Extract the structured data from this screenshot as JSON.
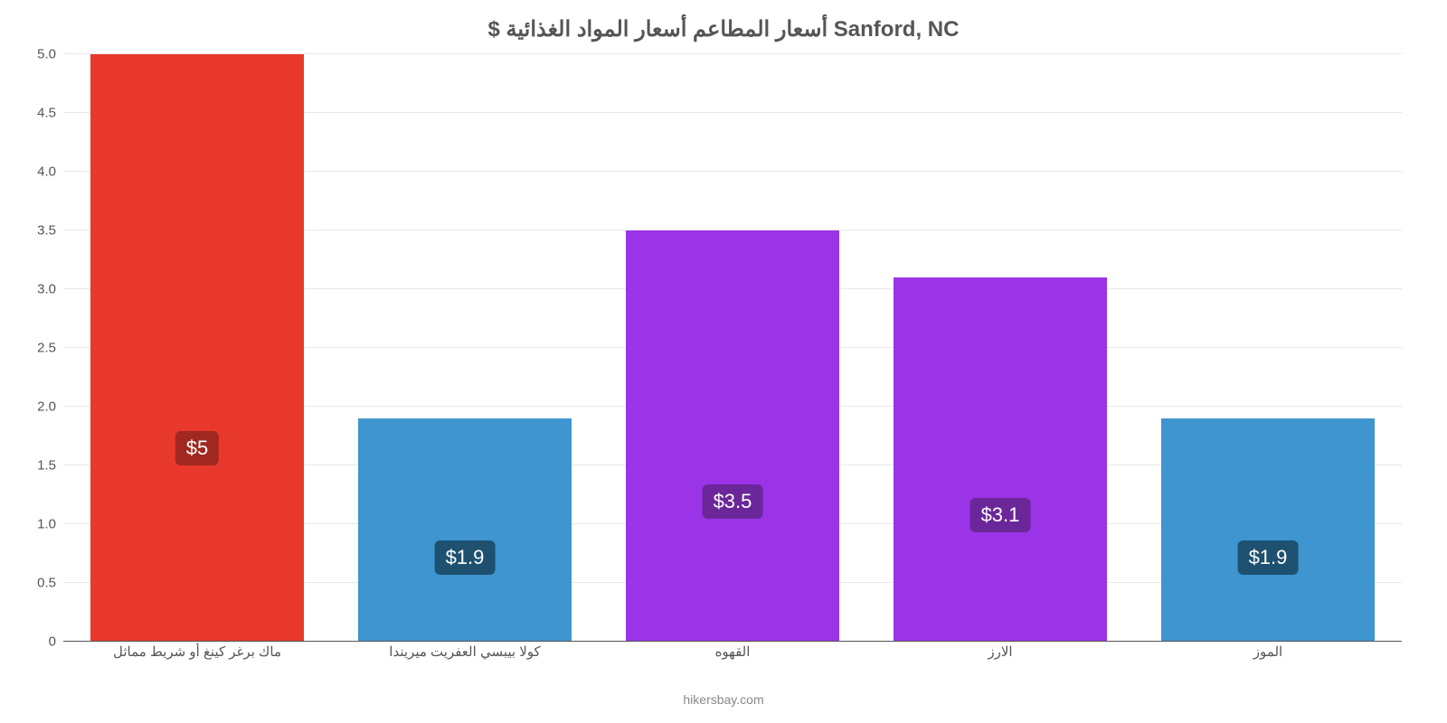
{
  "chart": {
    "type": "bar",
    "title": "$ أسعار المطاعم أسعار المواد الغذائية Sanford, NC",
    "title_fontsize": 24,
    "title_color": "#555555",
    "background_color": "#ffffff",
    "grid_color": "#e8e8e8",
    "axis_color": "#555555",
    "label_color": "#555555",
    "label_fontsize": 15,
    "value_badge_fontsize": 22,
    "ylim": [
      0,
      5.0
    ],
    "ytick_step": 0.5,
    "yticks": [
      "0",
      "0.5",
      "1.0",
      "1.5",
      "2.0",
      "2.5",
      "3.0",
      "3.5",
      "4.0",
      "4.5",
      "5.0"
    ],
    "bar_width_pct": 80,
    "categories": [
      "ماك برغر كينغ أو شريط مماثل",
      "كولا بيبسي العفريت ميريندا",
      "القهوه",
      "الارز",
      "الموز"
    ],
    "values": [
      5.0,
      1.9,
      3.5,
      3.1,
      1.9
    ],
    "value_labels": [
      "$5",
      "$1.9",
      "$3.5",
      "$3.1",
      "$1.9"
    ],
    "bar_colors": [
      "#e9392c",
      "#3e95d0",
      "#9b33e6",
      "#9b33e6",
      "#3e95d0"
    ],
    "badge_colors": [
      "#a12820",
      "#1e516f",
      "#6b2799",
      "#6b2799",
      "#1e516f"
    ],
    "attribution": "hikersbay.com"
  }
}
